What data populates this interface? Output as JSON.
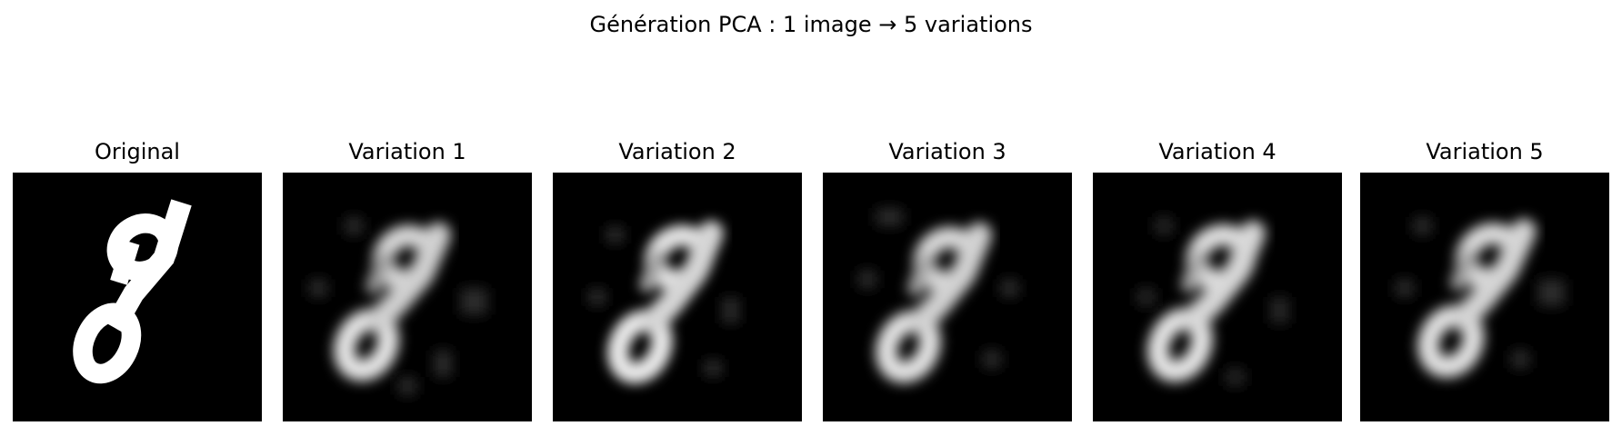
{
  "figure": {
    "title": "Génération PCA : 1 image → 5 variations",
    "panels": [
      {
        "label": "Original",
        "kind": "original"
      },
      {
        "label": "Variation 1",
        "kind": "variation"
      },
      {
        "label": "Variation 2",
        "kind": "variation"
      },
      {
        "label": "Variation 3",
        "kind": "variation"
      },
      {
        "label": "Variation 4",
        "kind": "variation"
      },
      {
        "label": "Variation 5",
        "kind": "variation"
      }
    ],
    "colors": {
      "background": "#000000",
      "digit": "#ffffff"
    }
  }
}
